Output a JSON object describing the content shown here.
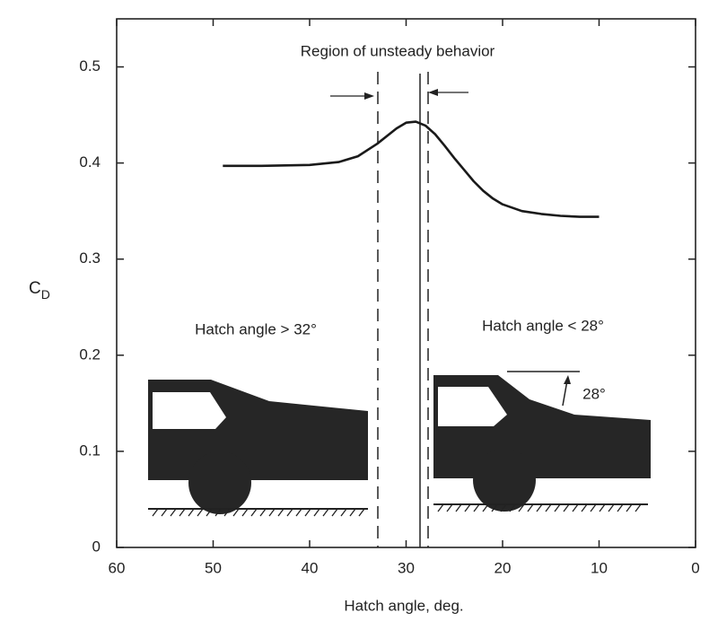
{
  "chart_data": {
    "type": "line",
    "annotation": "Region of unsteady behavior",
    "xlabel": "Hatch angle, deg.",
    "ylabel": {
      "main": "C",
      "sub": "D"
    },
    "left_label": "Hatch angle > 32°",
    "right_label": "Hatch angle < 28°",
    "angle_label": "28°",
    "x": [
      49,
      45,
      40,
      37,
      35,
      33,
      31,
      30,
      29,
      28,
      27,
      26,
      25,
      24,
      23,
      22,
      21,
      20,
      18,
      16,
      14,
      12,
      10
    ],
    "values": [
      0.397,
      0.397,
      0.398,
      0.401,
      0.407,
      0.42,
      0.436,
      0.442,
      0.443,
      0.439,
      0.43,
      0.418,
      0.405,
      0.393,
      0.381,
      0.371,
      0.363,
      0.357,
      0.35,
      0.347,
      0.345,
      0.344,
      0.344
    ],
    "color": "#1a1a1a",
    "xlim": [
      60,
      0
    ],
    "xticks": [
      60,
      50,
      40,
      30,
      20,
      10,
      0
    ],
    "ylim": [
      0,
      0.55
    ],
    "yticks": [
      0,
      0.1,
      0.2,
      0.3,
      0.4,
      0.5
    ],
    "grid": false
  }
}
